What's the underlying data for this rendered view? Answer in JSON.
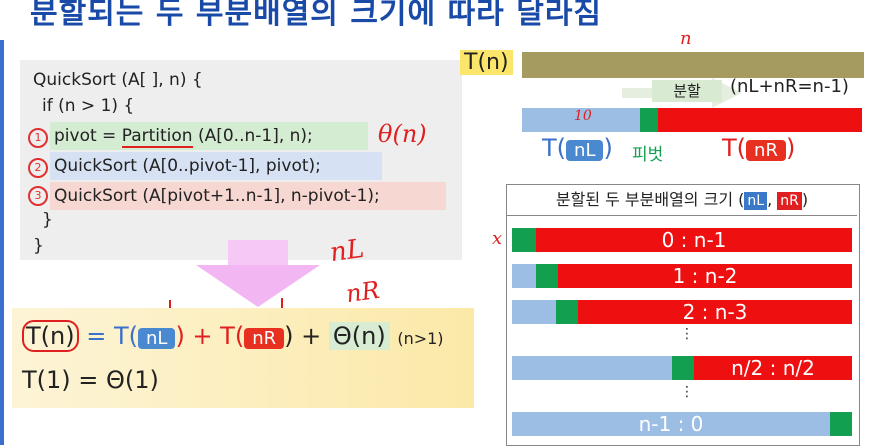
{
  "title": "분할되는 두 부분배열의 크기에 따라 달라짐",
  "code": {
    "line1": "QuickSort (A[ ], n) {",
    "line2": "if (n > 1) {",
    "line3_pre": "pivot = ",
    "line3_fn": "Partition",
    "line3_post": " (A[0..n-1], n);",
    "line4": "QuickSort (A[0..pivot-1], pivot);",
    "line5": "QuickSort (A[pivot+1..n-1], n-pivot-1);",
    "line6": "}",
    "line7": "}",
    "num1": "1",
    "num2": "2",
    "num3": "3"
  },
  "annotations": {
    "theta_n": "θ(n)",
    "nL": "nL",
    "nR": "nR",
    "n_top": "n",
    "ten": "10",
    "x_mark": "x"
  },
  "recurrence": {
    "tn": "T(n)",
    "eq": " = T(",
    "nL": "nL",
    "plus_t": ") + T(",
    "nR": "nR",
    "plus_theta": ") + ",
    "theta": "Θ(n)",
    "cond": "(n>1)",
    "base": "T(1) = Θ(1)"
  },
  "diagram": {
    "tn_label": "T(n)",
    "split_label": "분할",
    "equation": "(nL+nR=n-1)",
    "left_t": "T(",
    "left_n": "nL",
    "left_close": ")",
    "pivot_label": "피벗",
    "right_t": "T(",
    "right_n": "nR",
    "right_close": ")"
  },
  "table": {
    "header_pre": "분할된 두 부분배열의 크기 (",
    "header_nL": "nL",
    "header_sep": ", ",
    "header_nR": "nR",
    "header_post": ")",
    "rows": [
      "0 : n-1",
      "1 : n-2",
      "2 : n-3",
      "n/2 : n/2",
      "n-1 : 0"
    ],
    "dots": "⋮"
  },
  "colors": {
    "blue": "#9cbde4",
    "green": "#12a050",
    "red": "#ee1010",
    "title": "#1a4aa8"
  }
}
